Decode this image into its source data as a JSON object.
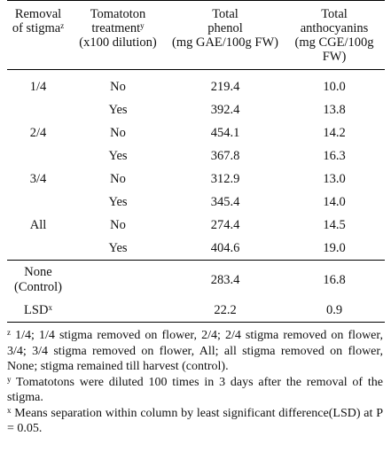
{
  "headers": {
    "removal": [
      "Removal",
      "of stigma"
    ],
    "removal_sup": "z",
    "treatment": [
      "Tomatoton",
      "treatment"
    ],
    "treatment_sup": "y",
    "treatment_sub": "(x100 dilution)",
    "phenol": [
      "Total",
      "phenol",
      "(mg GAE/100g FW)"
    ],
    "anthocyanins": [
      "Total",
      "anthocyanins",
      "(mg CGE/100g FW)"
    ]
  },
  "rows": [
    {
      "removal": "1/4",
      "treatment": "No",
      "phenol": "219.4",
      "anthocyanins": "10.0"
    },
    {
      "removal": "",
      "treatment": "Yes",
      "phenol": "392.4",
      "anthocyanins": "13.8"
    },
    {
      "removal": "2/4",
      "treatment": "No",
      "phenol": "454.1",
      "anthocyanins": "14.2"
    },
    {
      "removal": "",
      "treatment": "Yes",
      "phenol": "367.8",
      "anthocyanins": "16.3"
    },
    {
      "removal": "3/4",
      "treatment": "No",
      "phenol": "312.9",
      "anthocyanins": "13.0"
    },
    {
      "removal": "",
      "treatment": "Yes",
      "phenol": "345.4",
      "anthocyanins": "14.0"
    },
    {
      "removal": "All",
      "treatment": "No",
      "phenol": "274.4",
      "anthocyanins": "14.5"
    },
    {
      "removal": "",
      "treatment": "Yes",
      "phenol": "404.6",
      "anthocyanins": "19.0"
    }
  ],
  "control": {
    "label": [
      "None",
      "(Control)"
    ],
    "phenol": "283.4",
    "anthocyanins": "16.8"
  },
  "lsd": {
    "label": "LSD",
    "sup": "x",
    "phenol": "22.2",
    "anthocyanins": "0.9"
  },
  "footnotes": [
    {
      "mark": "z",
      "text": " 1/4; 1/4 stigma removed on flower, 2/4; 2/4 stigma removed on flower, 3/4; 3/4 stigma removed on flower, All; all stigma removed on flower, None; stigma remained till harvest (control)."
    },
    {
      "mark": "y",
      "text": " Tomatotons were diluted 100 times in 3 days after the removal of the stigma."
    },
    {
      "mark": "x",
      "text": " Means separation within column by least significant difference(LSD) at P = 0.05."
    }
  ]
}
